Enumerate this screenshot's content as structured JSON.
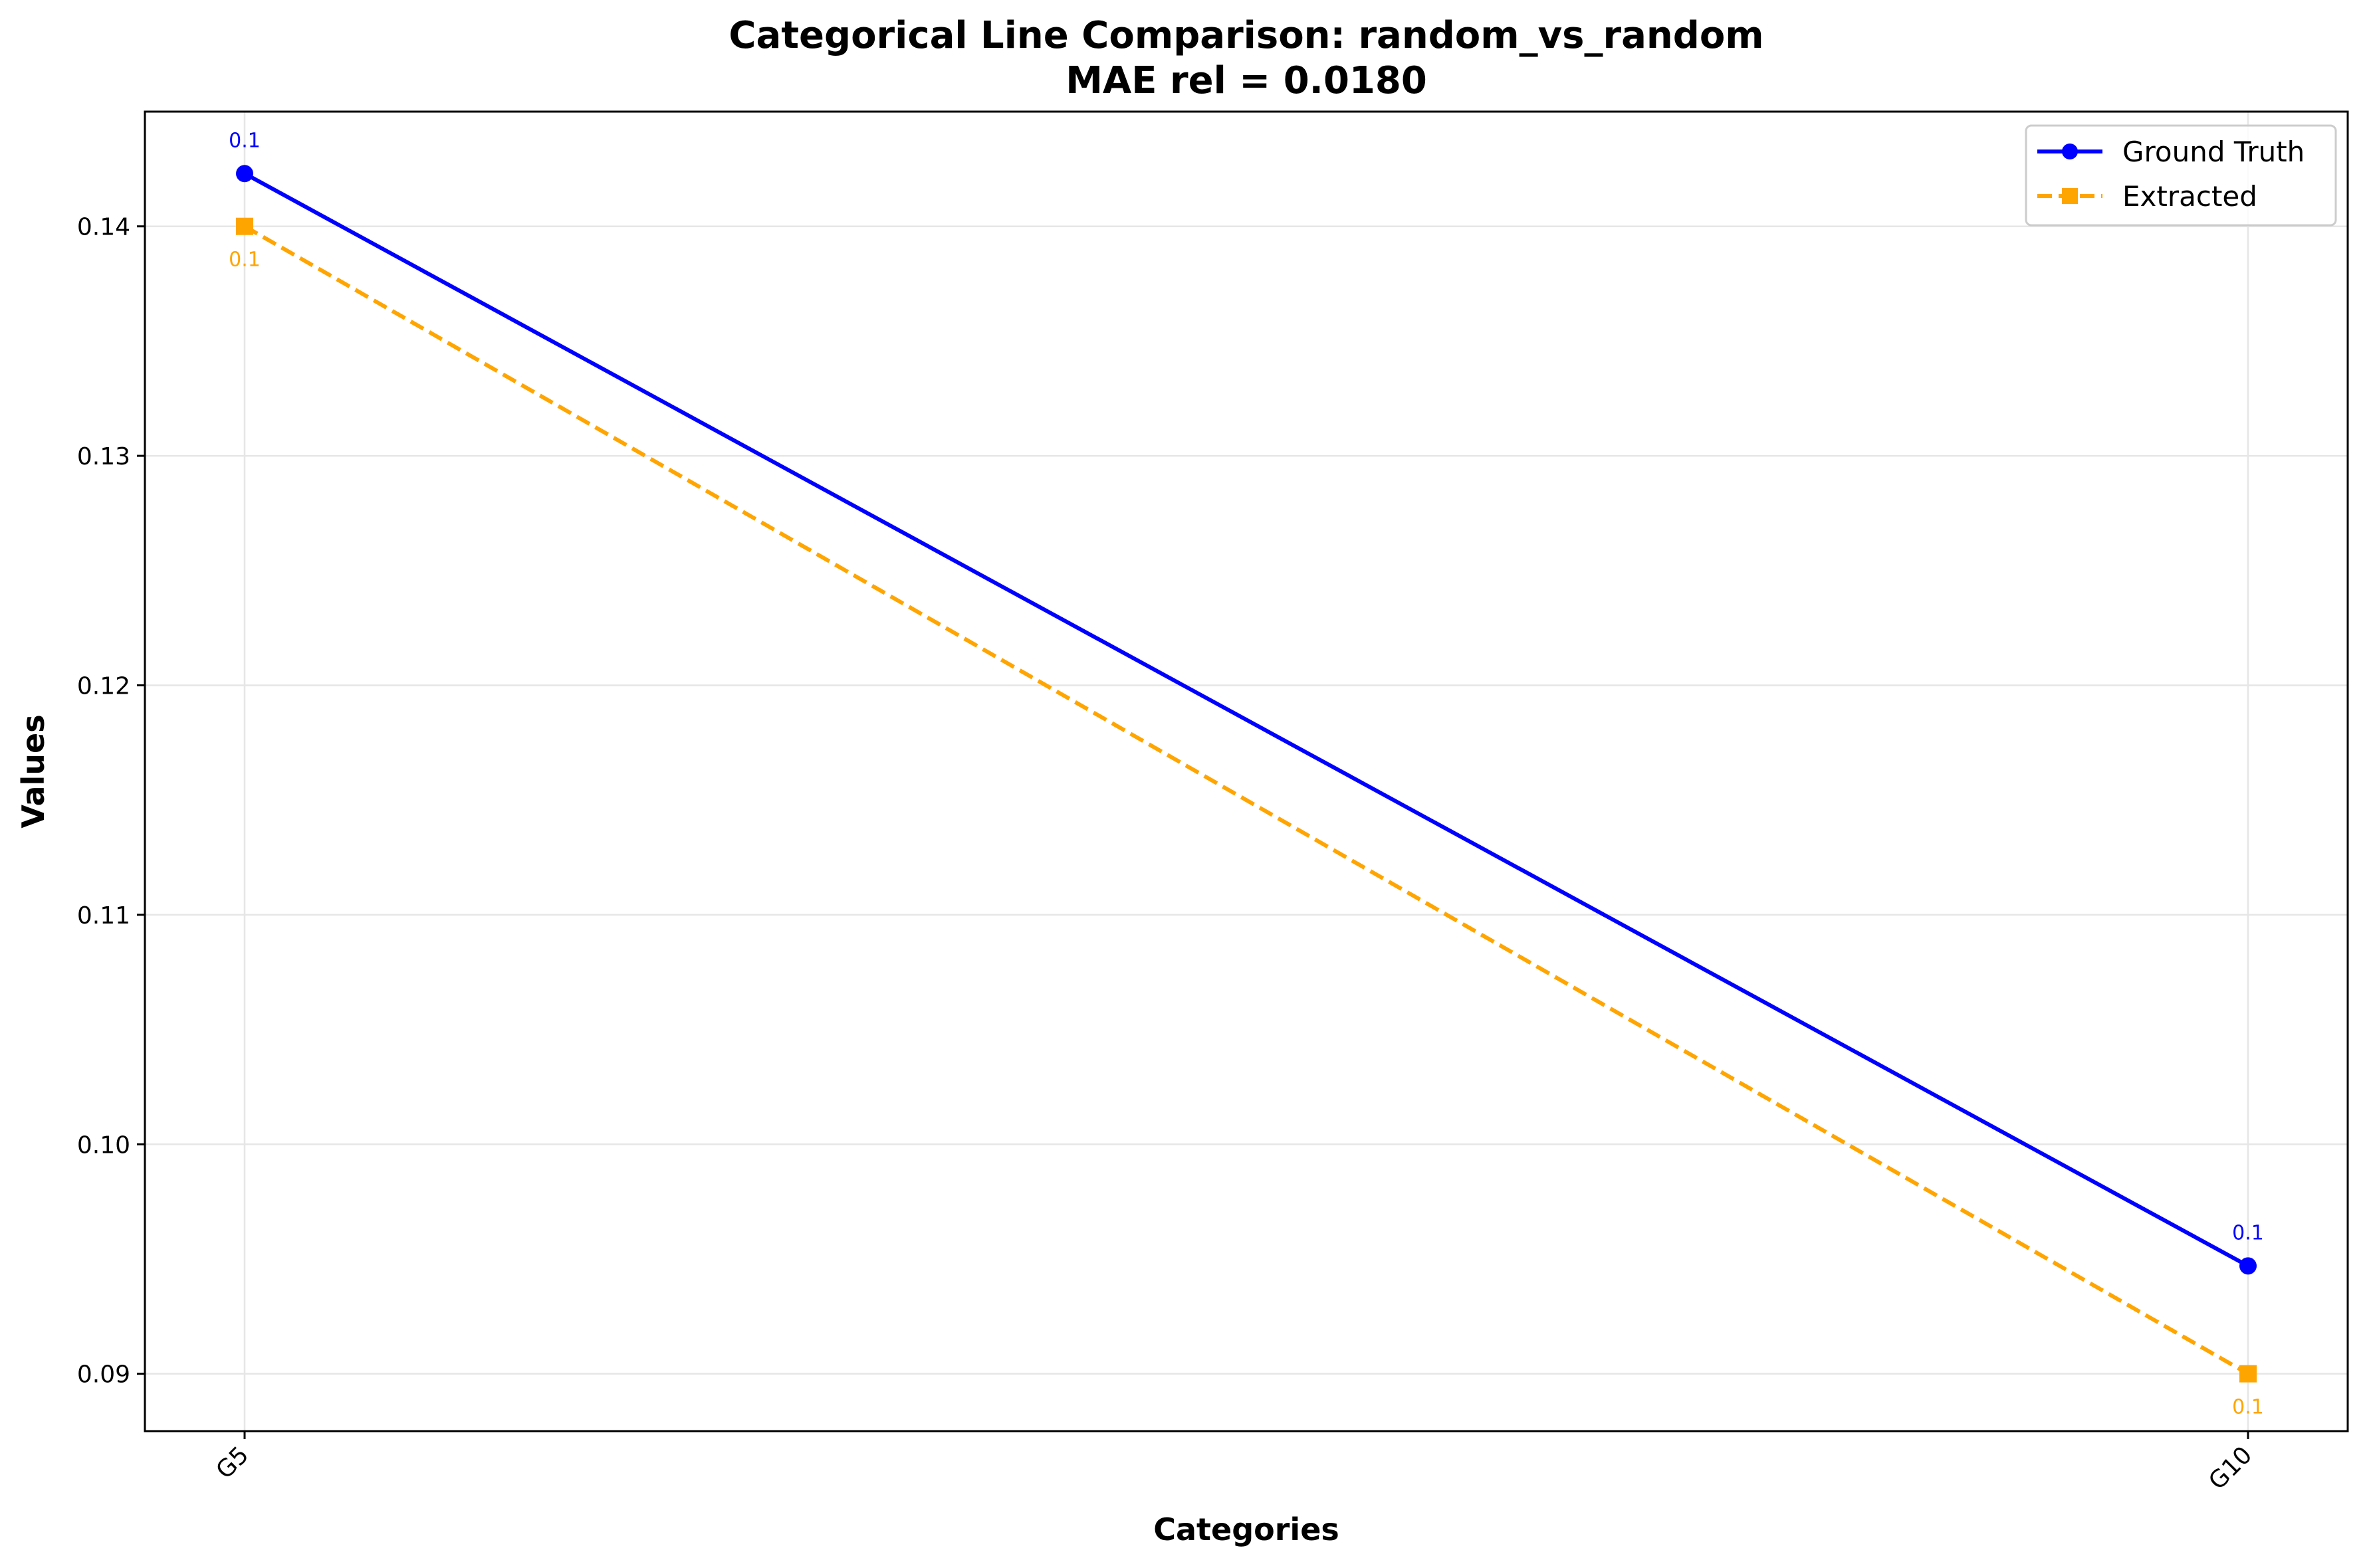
{
  "chart_data": {
    "type": "line",
    "title": "Categorical Line Comparison: random_vs_random",
    "subtitle": "MAE rel = 0.0180",
    "xlabel": "Categories",
    "ylabel": "Values",
    "categories": [
      "G5",
      "G10"
    ],
    "ylim": [
      0.0875,
      0.145
    ],
    "yticks": [
      0.09,
      0.1,
      0.11,
      0.12,
      0.13,
      0.14
    ],
    "ytick_labels": [
      "0.09",
      "0.10",
      "0.11",
      "0.12",
      "0.13",
      "0.14"
    ],
    "grid": true,
    "legend_position": "top-right",
    "series": [
      {
        "name": "Ground Truth",
        "values": [
          0.1423,
          0.0947
        ],
        "point_labels": [
          "0.1",
          "0.1"
        ],
        "color": "#0000ff",
        "marker": "circle",
        "line_style": "solid"
      },
      {
        "name": "Extracted",
        "values": [
          0.14,
          0.09
        ],
        "point_labels": [
          "0.1",
          "0.1"
        ],
        "color": "#ffa500",
        "marker": "square",
        "line_style": "dashed"
      }
    ]
  }
}
